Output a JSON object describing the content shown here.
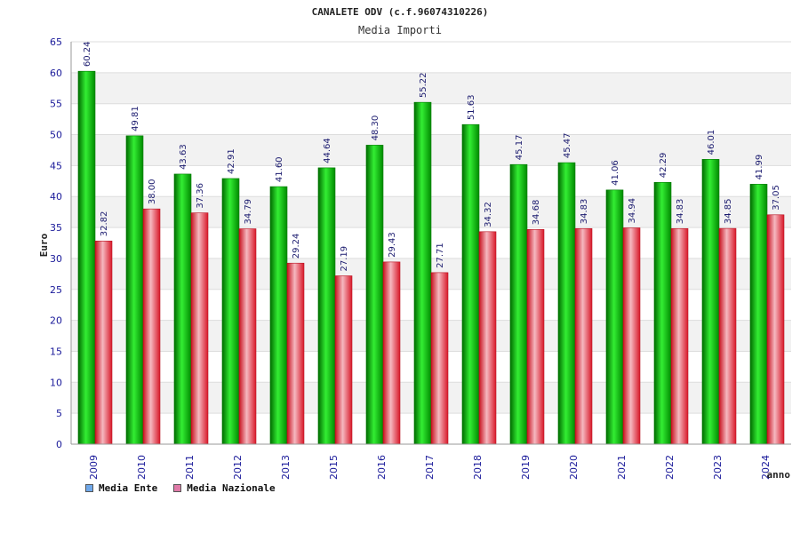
{
  "chart_data": {
    "type": "bar",
    "title": "CANALETE ODV (c.f.96074310226)",
    "subtitle": "Media Importi",
    "ylabel": "Euro",
    "xlabel": "anno",
    "ylim": [
      0,
      65
    ],
    "yticks": [
      0,
      5,
      10,
      15,
      20,
      25,
      30,
      35,
      40,
      45,
      50,
      55,
      60,
      65
    ],
    "grid": true,
    "legend_position": "bottom-left",
    "categories": [
      "2009",
      "2010",
      "2011",
      "2012",
      "2013",
      "2015",
      "2016",
      "2017",
      "2018",
      "2019",
      "2020",
      "2021",
      "2022",
      "2023",
      "2024"
    ],
    "series": [
      {
        "name": "Media Ente",
        "color": "#00b400",
        "legend_color": "#6fa8ea",
        "values": [
          60.24,
          49.81,
          43.63,
          42.91,
          41.6,
          44.64,
          48.3,
          55.22,
          51.63,
          45.17,
          45.47,
          41.06,
          42.29,
          46.01,
          41.99
        ],
        "labels": [
          "60.24",
          "49.81",
          "43.63",
          "42.91",
          "41.60",
          "44.64",
          "48.30",
          "55.22",
          "51.63",
          "45.17",
          "45.47",
          "41.06",
          "42.29",
          "46.01",
          "41.99"
        ]
      },
      {
        "name": "Media Nazionale",
        "color": "#e8202e",
        "legend_color": "#e07aa8",
        "values": [
          32.82,
          38.0,
          37.36,
          34.79,
          29.24,
          27.19,
          29.43,
          27.71,
          34.32,
          34.68,
          34.83,
          34.94,
          34.83,
          34.85,
          37.05
        ],
        "labels": [
          "32.82",
          "38.00",
          "37.36",
          "34.79",
          "29.24",
          "27.19",
          "29.43",
          "27.71",
          "34.32",
          "34.68",
          "34.83",
          "34.94",
          "34.83",
          "34.85",
          "37.05"
        ]
      }
    ]
  }
}
